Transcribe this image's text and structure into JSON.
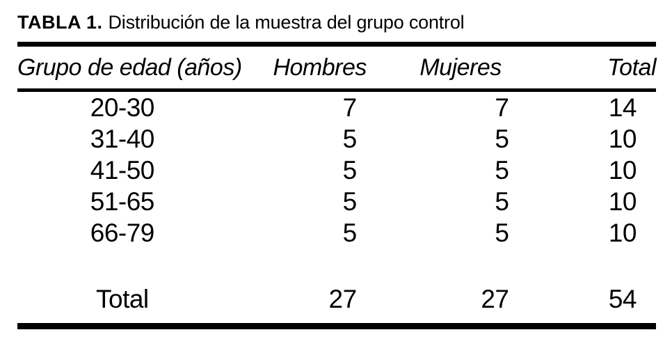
{
  "table": {
    "title": {
      "label": "TABLA 1.",
      "text": "Distribución de la muestra del grupo control"
    },
    "columns": [
      {
        "key": "grupo",
        "label": "Grupo de edad (años)"
      },
      {
        "key": "hombres",
        "label": "Hombres"
      },
      {
        "key": "mujeres",
        "label": "Mujeres"
      },
      {
        "key": "total",
        "label": "Total"
      }
    ],
    "rows": [
      {
        "grupo": "20-30",
        "hombres": "7",
        "mujeres": "7",
        "total": "14"
      },
      {
        "grupo": "31-40",
        "hombres": "5",
        "mujeres": "5",
        "total": "10"
      },
      {
        "grupo": "41-50",
        "hombres": "5",
        "mujeres": "5",
        "total": "10"
      },
      {
        "grupo": "51-65",
        "hombres": "5",
        "mujeres": "5",
        "total": "10"
      },
      {
        "grupo": "66-79",
        "hombres": "5",
        "mujeres": "5",
        "total": "10"
      }
    ],
    "total_row": {
      "grupo": "Total",
      "hombres": "27",
      "mujeres": "27",
      "total": "54"
    }
  },
  "colors": {
    "text": "#000000",
    "background": "#ffffff",
    "rule": "#000000"
  },
  "chart_data": {
    "type": "table",
    "title": "TABLA 1. Distribución de la muestra del grupo control",
    "columns": [
      "Grupo de edad (años)",
      "Hombres",
      "Mujeres",
      "Total"
    ],
    "rows": [
      [
        "20-30",
        7,
        7,
        14
      ],
      [
        "31-40",
        5,
        5,
        10
      ],
      [
        "41-50",
        5,
        5,
        10
      ],
      [
        "51-65",
        5,
        5,
        10
      ],
      [
        "66-79",
        5,
        5,
        10
      ],
      [
        "Total",
        27,
        27,
        54
      ]
    ]
  }
}
